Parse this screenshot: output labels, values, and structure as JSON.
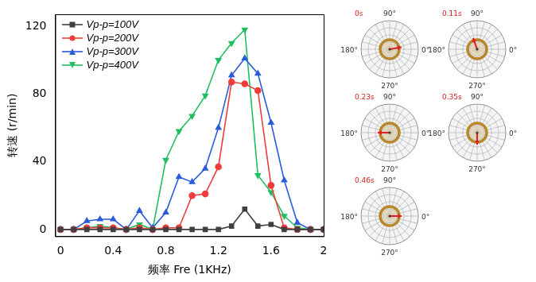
{
  "chart_data": {
    "type": "line",
    "x_label": "频率 Fre (1KHz)",
    "y_label": "转速 (r/min)",
    "x": [
      0,
      0.1,
      0.2,
      0.3,
      0.4,
      0.5,
      0.6,
      0.7,
      0.8,
      0.9,
      1.0,
      1.1,
      1.2,
      1.3,
      1.4,
      1.5,
      1.6,
      1.7,
      1.8,
      1.9,
      2.0
    ],
    "series": [
      {
        "name": "Vp-p=100V",
        "color": "#404040",
        "marker": "square",
        "values": [
          0,
          0,
          0,
          0,
          0,
          0,
          0,
          0,
          0,
          0,
          0,
          0,
          0,
          2,
          12,
          2,
          3,
          0,
          0,
          0,
          0
        ]
      },
      {
        "name": "Vp-p=200V",
        "color": "#f03c3c",
        "marker": "circle",
        "values": [
          0,
          0,
          1,
          1,
          1,
          0,
          1,
          0,
          1,
          1,
          20,
          21,
          37,
          87,
          86,
          82,
          26,
          1,
          0,
          0,
          0
        ]
      },
      {
        "name": "Vp-p=300V",
        "color": "#2a5bdc",
        "marker": "triangle-up",
        "values": [
          0,
          0,
          5,
          6,
          6,
          0,
          11,
          1,
          10,
          31,
          28,
          36,
          60,
          91,
          101,
          92,
          63,
          29,
          4,
          0,
          0
        ]
      },
      {
        "name": "Vp-p=400V",
        "color": "#1fbf5f",
        "marker": "triangle-down",
        "values": [
          0,
          0,
          1,
          2,
          1,
          0,
          3,
          0,
          41,
          58,
          67,
          79,
          100,
          110,
          118,
          32,
          22,
          8,
          1,
          0,
          0
        ]
      }
    ],
    "xlim": [
      -0.04,
      2
    ],
    "xticks": [
      0,
      0.4,
      0.8,
      1.2,
      1.6,
      2
    ],
    "ylim": [
      -4,
      127
    ],
    "yticks": [
      0,
      40,
      80,
      120
    ],
    "grid": false,
    "legend": "upper left"
  },
  "rotation_frames": {
    "angle_ticks": [
      {
        "value": 90,
        "label": "90°"
      },
      {
        "value": 180,
        "label": "180°"
      },
      {
        "value": 0,
        "label": "0°"
      },
      {
        "value": 270,
        "label": "270°"
      }
    ],
    "frames": [
      {
        "time": "0s",
        "angle": 10
      },
      {
        "time": "0.11s",
        "angle": 110
      },
      {
        "time": "0.23s",
        "angle": 180
      },
      {
        "time": "0.35s",
        "angle": 270
      },
      {
        "time": "0.46s",
        "angle": 0
      }
    ]
  }
}
